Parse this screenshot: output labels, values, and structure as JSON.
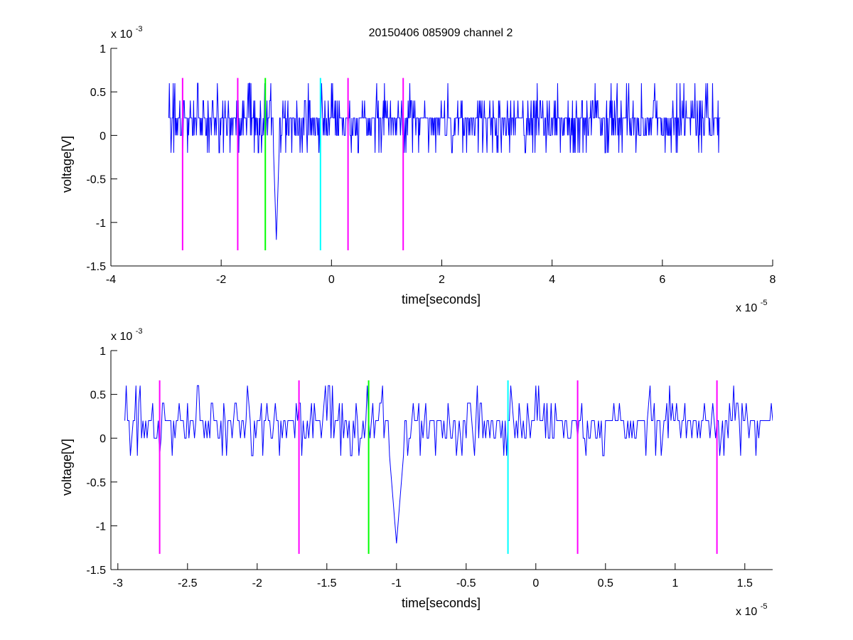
{
  "figure_title": "20150406 085909 channel 2",
  "chart_data": [
    {
      "type": "line",
      "title": "20150406 085909 channel 2",
      "xlabel": "time[seconds]",
      "ylabel": "voltage[V]",
      "x_multiplier_label": "x 10",
      "x_multiplier_exp": "-5",
      "y_multiplier_label": "x 10",
      "y_multiplier_exp": "-3",
      "xlim": [
        -4e-05,
        8e-05
      ],
      "ylim": [
        -0.0015,
        0.001
      ],
      "xticks": [
        -4e-05,
        -2e-05,
        0,
        2e-05,
        4e-05,
        6e-05,
        8e-05
      ],
      "xtick_labels": [
        "-4",
        "-2",
        "0",
        "2",
        "4",
        "6",
        "8"
      ],
      "yticks": [
        0.001,
        0.0005,
        0,
        -0.0005,
        -0.001,
        -0.0015
      ],
      "ytick_labels": [
        "1",
        "0.5",
        "0",
        "-0.5",
        "-1",
        "-1.5"
      ],
      "grid": false,
      "series": [
        {
          "color": "#0000ff",
          "x_start": -2.95e-05,
          "x_end": 7.05e-05,
          "baseline": 0.0002,
          "quantum": 0.0002,
          "levels_range": [
            -0.0002,
            0.0006
          ],
          "spike": {
            "x": -1e-05,
            "y_min": -0.0012
          }
        }
      ],
      "markers": [
        {
          "x": -2.7e-05,
          "color": "#ff00ff",
          "y_top": 0.00066,
          "y_bottom": -0.00132
        },
        {
          "x": -1.7e-05,
          "color": "#ff00ff",
          "y_top": 0.00066,
          "y_bottom": -0.00132
        },
        {
          "x": -1.2e-05,
          "color": "#00ff00",
          "y_top": 0.00066,
          "y_bottom": -0.00132
        },
        {
          "x": -2e-06,
          "color": "#00ffff",
          "y_top": 0.00066,
          "y_bottom": -0.00132
        },
        {
          "x": 3e-06,
          "color": "#ff00ff",
          "y_top": 0.00066,
          "y_bottom": -0.00132
        },
        {
          "x": 1.3e-05,
          "color": "#ff00ff",
          "y_top": 0.00066,
          "y_bottom": -0.00132
        }
      ]
    },
    {
      "type": "line",
      "xlabel": "time[seconds]",
      "ylabel": "voltage[V]",
      "x_multiplier_label": "x 10",
      "x_multiplier_exp": "-5",
      "y_multiplier_label": "x 10",
      "y_multiplier_exp": "-3",
      "xlim": [
        -3.05e-05,
        1.7e-05
      ],
      "ylim": [
        -0.0015,
        0.001
      ],
      "xticks": [
        -3e-05,
        -2.5e-05,
        -2e-05,
        -1.5e-05,
        -1e-05,
        -5e-06,
        0,
        5e-06,
        1e-05,
        1.5e-05
      ],
      "xtick_labels": [
        "-3",
        "-2.5",
        "-2",
        "-1.5",
        "-1",
        "-0.5",
        "0",
        "0.5",
        "1",
        "1.5"
      ],
      "yticks": [
        0.001,
        0.0005,
        0,
        -0.0005,
        -0.001,
        -0.0015
      ],
      "ytick_labels": [
        "1",
        "0.5",
        "0",
        "-0.5",
        "-1",
        "-1.5"
      ],
      "grid": false,
      "series": [
        {
          "color": "#0000ff",
          "x_start": -2.95e-05,
          "x_end": 1.7e-05,
          "baseline": 0.0002,
          "quantum": 0.0002,
          "levels_range": [
            -0.0002,
            0.0006
          ],
          "spike": {
            "x": -1e-05,
            "y_min": -0.0012
          }
        }
      ],
      "markers": [
        {
          "x": -2.7e-05,
          "color": "#ff00ff",
          "y_top": 0.00066,
          "y_bottom": -0.00132
        },
        {
          "x": -1.7e-05,
          "color": "#ff00ff",
          "y_top": 0.00066,
          "y_bottom": -0.00132
        },
        {
          "x": -1.2e-05,
          "color": "#00ff00",
          "y_top": 0.00066,
          "y_bottom": -0.00132
        },
        {
          "x": -2e-06,
          "color": "#00ffff",
          "y_top": 0.00066,
          "y_bottom": -0.00132
        },
        {
          "x": 3e-06,
          "color": "#ff00ff",
          "y_top": 0.00066,
          "y_bottom": -0.00132
        },
        {
          "x": 1.3e-05,
          "color": "#ff00ff",
          "y_top": 0.00066,
          "y_bottom": -0.00132
        }
      ]
    }
  ]
}
